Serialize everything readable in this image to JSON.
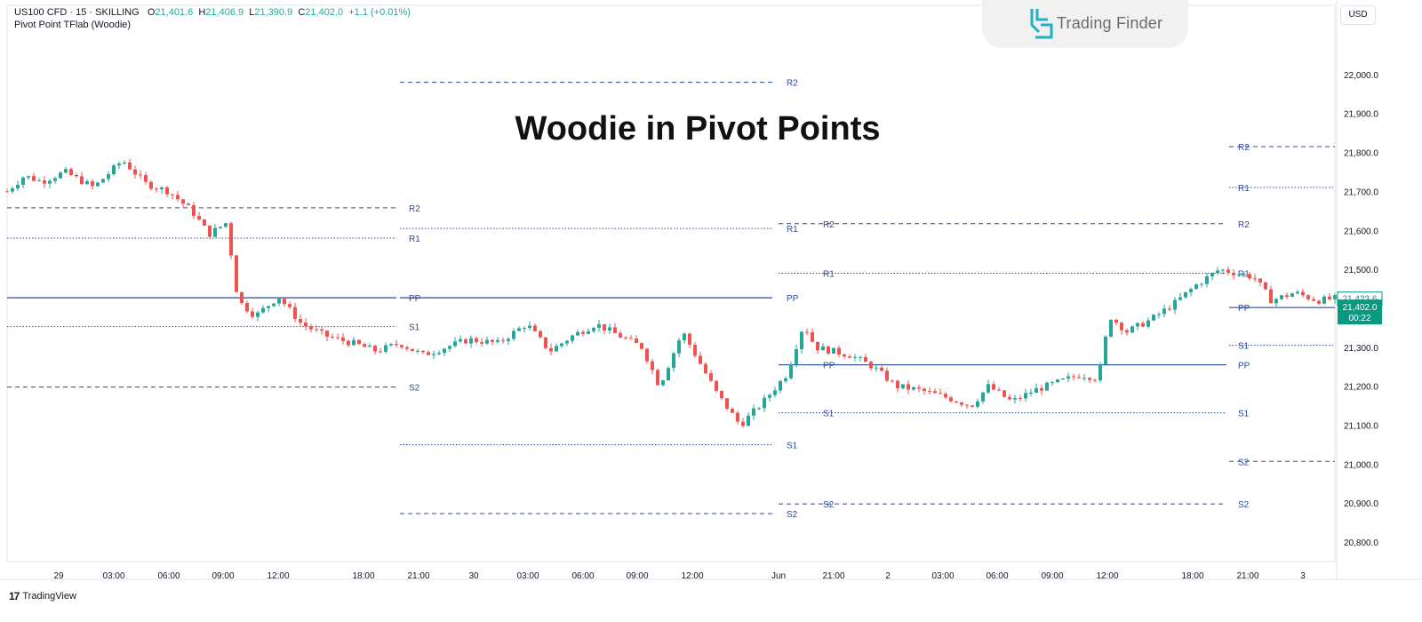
{
  "header": {
    "symbol": "US100 CFD",
    "interval": "15",
    "exchange": "SKILLING",
    "o_label": "O",
    "o_value": "21,401.6",
    "h_label": "H",
    "h_value": "21,406.9",
    "l_label": "L",
    "l_value": "21,390.9",
    "c_label": "C",
    "c_value": "21,402.0",
    "change": "+1.1 (+0.01%)",
    "indicator": "Pivot Point TFlab (Woodie)"
  },
  "brand": {
    "name": "Trading Finder"
  },
  "currency_button": "USD",
  "title": "Woodie in Pivot Points",
  "footer": {
    "tradingview": "TradingView"
  },
  "colors": {
    "up": "#26a69a",
    "down": "#ef5350",
    "pivot_line": "#2a4a9a",
    "label": "#2a4a9a",
    "price_tag": "#089981",
    "grid_text": "#131722"
  },
  "chart_data": {
    "type": "candlestick",
    "symbol": "US100 CFD",
    "timeframe": "15",
    "ylim": [
      20750,
      22100
    ],
    "y_ticks": [
      {
        "value": 22000,
        "label": "22,000.0"
      },
      {
        "value": 21900,
        "label": "21,900.0"
      },
      {
        "value": 21800,
        "label": "21,800.0"
      },
      {
        "value": 21700,
        "label": "21,700.0"
      },
      {
        "value": 21600,
        "label": "21,600.0"
      },
      {
        "value": 21500,
        "label": "21,500.0"
      },
      {
        "value": 21300,
        "label": "21,300.0"
      },
      {
        "value": 21200,
        "label": "21,200.0"
      },
      {
        "value": 21100,
        "label": "21,100.0"
      },
      {
        "value": 21000,
        "label": "21,000.0"
      },
      {
        "value": 20900,
        "label": "20,900.0"
      },
      {
        "value": 20800,
        "label": "20,800.0"
      }
    ],
    "x_ticks": [
      "29",
      "03:00",
      "06:00",
      "09:00",
      "12:00",
      "18:00",
      "21:00",
      "30",
      "03:00",
      "06:00",
      "09:00",
      "12:00",
      "Jun",
      "21:00",
      "2",
      "03:00",
      "06:00",
      "09:00",
      "12:00",
      "18:00",
      "21:00",
      "3"
    ],
    "price_tags": [
      {
        "label": "21,423.6",
        "value": 21423.6,
        "style": "outline"
      },
      {
        "label": "21,402.0",
        "sublabel": "00:22",
        "value": 21402.0,
        "style": "filled"
      }
    ],
    "close_path": [
      [
        0,
        21700
      ],
      [
        0.3,
        21740
      ],
      [
        0.6,
        21725
      ],
      [
        1.0,
        21750
      ],
      [
        1.5,
        21710
      ],
      [
        2.0,
        21780
      ],
      [
        2.4,
        21720
      ],
      [
        2.8,
        21700
      ],
      [
        3.2,
        21650
      ],
      [
        3.5,
        21590
      ],
      [
        3.8,
        21620
      ],
      [
        4.0,
        21420
      ],
      [
        4.3,
        21380
      ],
      [
        4.7,
        21430
      ],
      [
        5.1,
        21360
      ],
      [
        5.5,
        21330
      ],
      [
        6.0,
        21310
      ],
      [
        6.4,
        21290
      ],
      [
        6.8,
        21310
      ],
      [
        7.2,
        21280
      ],
      [
        7.6,
        21300
      ],
      [
        8.0,
        21320
      ],
      [
        8.5,
        21310
      ],
      [
        9.0,
        21360
      ],
      [
        9.4,
        21290
      ],
      [
        9.8,
        21330
      ],
      [
        10.2,
        21360
      ],
      [
        10.6,
        21330
      ],
      [
        11.0,
        21300
      ],
      [
        11.3,
        21200
      ],
      [
        11.7,
        21340
      ],
      [
        12.0,
        21260
      ],
      [
        12.3,
        21180
      ],
      [
        12.7,
        21100
      ],
      [
        13.1,
        21160
      ],
      [
        13.5,
        21230
      ],
      [
        13.8,
        21360
      ],
      [
        14.0,
        21300
      ],
      [
        14.3,
        21290
      ],
      [
        14.6,
        21280
      ],
      [
        15.0,
        21250
      ],
      [
        15.4,
        21200
      ],
      [
        15.8,
        21190
      ],
      [
        16.3,
        21170
      ],
      [
        16.7,
        21150
      ],
      [
        17.0,
        21200
      ],
      [
        17.4,
        21160
      ],
      [
        17.8,
        21190
      ],
      [
        18.2,
        21210
      ],
      [
        18.6,
        21230
      ],
      [
        18.9,
        21220
      ],
      [
        19.1,
        21380
      ],
      [
        19.4,
        21340
      ],
      [
        19.8,
        21370
      ],
      [
        20.2,
        21410
      ],
      [
        20.6,
        21460
      ],
      [
        21.0,
        21500
      ],
      [
        21.3,
        21490
      ],
      [
        21.6,
        21480
      ],
      [
        21.9,
        21420
      ],
      [
        22.3,
        21440
      ],
      [
        22.7,
        21420
      ],
      [
        23.0,
        21425
      ]
    ],
    "series": [
      {
        "name": "Pivot Point TFlab (Woodie)",
        "segments": [
          {
            "from": "29 00:00",
            "to": "29 21:00",
            "levels": [
              {
                "name": "R2",
                "value": 21658,
                "style": "dashed"
              },
              {
                "name": "R1",
                "value": 21580,
                "style": "dotted"
              },
              {
                "name": "PP",
                "value": 21427,
                "style": "solid"
              },
              {
                "name": "S1",
                "value": 21353,
                "style": "dotted"
              },
              {
                "name": "S2",
                "value": 21198,
                "style": "dashed"
              }
            ]
          },
          {
            "from": "29 21:00",
            "to": "30 21:00",
            "levels": [
              {
                "name": "R2",
                "value": 21980,
                "style": "dashed"
              },
              {
                "name": "R1",
                "value": 21605,
                "style": "dotted"
              },
              {
                "name": "PP",
                "value": 21427,
                "style": "solid"
              },
              {
                "name": "S1",
                "value": 21050,
                "style": "dotted"
              },
              {
                "name": "S2",
                "value": 20873,
                "style": "dashed"
              }
            ]
          },
          {
            "from": "Jun 00:00",
            "to": "2 21:00",
            "levels": [
              {
                "name": "R2",
                "value": 21617,
                "style": "dashed"
              },
              {
                "name": "R1",
                "value": 21490,
                "style": "dotted"
              },
              {
                "name": "PP",
                "value": 21255,
                "style": "solid"
              },
              {
                "name": "S1",
                "value": 21132,
                "style": "dotted"
              },
              {
                "name": "S2",
                "value": 20898,
                "style": "dashed"
              }
            ]
          },
          {
            "from": "2 21:00",
            "to": "3 03:00",
            "levels": [
              {
                "name": "R2",
                "value": 21815,
                "style": "dashed"
              },
              {
                "name": "R1",
                "value": 21710,
                "style": "dotted"
              },
              {
                "name": "PP",
                "value": 21402,
                "style": "solid"
              },
              {
                "name": "S1",
                "value": 21305,
                "style": "dotted"
              },
              {
                "name": "S2",
                "value": 21007,
                "style": "dashed"
              }
            ]
          }
        ]
      }
    ]
  }
}
